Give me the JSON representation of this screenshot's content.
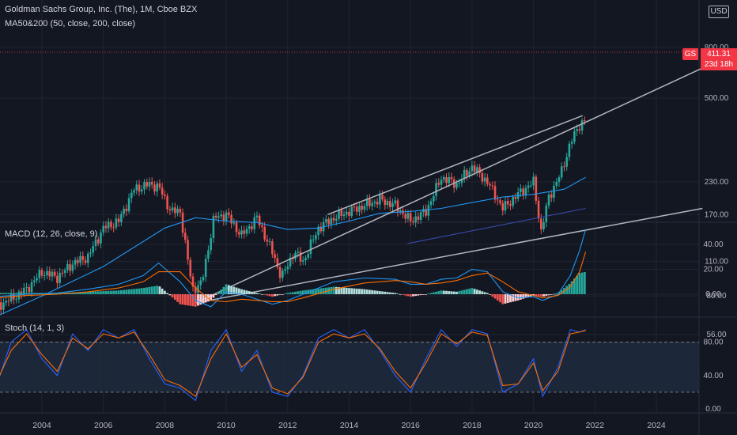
{
  "header": {
    "title": "Goldman Sachs Group, Inc. (The), 1M, Cboe BZX",
    "ma_legend": "MA50&200 (50, close, 200, close)",
    "currency": "USD"
  },
  "price_tag": {
    "symbol": "GS",
    "value": "411.31",
    "countdown": "23d 18h"
  },
  "indicators": {
    "macd_legend": "MACD (12, 26, close, 9)",
    "stoch_legend": "Stoch (14, 1, 3)"
  },
  "colors": {
    "background": "#131722",
    "up": "#26a69a",
    "down": "#ef5350",
    "ma_short": "#2196f3",
    "ma_long": "#3949ab",
    "trendline": "#b2b5be",
    "macd_line": "#2196f3",
    "signal_line": "#ff6d00",
    "stoch_k": "#2962ff",
    "stoch_d": "#ff6d00",
    "price_tag": "#f23645"
  },
  "chart_data": [
    {
      "type": "candlestick",
      "title": "Goldman Sachs Group, Inc. (The), 1M, Cboe BZX",
      "scale": "log",
      "yticks": [
        56,
        80,
        110,
        170,
        230,
        500,
        800
      ],
      "ytick_labels": [
        "56.00",
        "80.00",
        "110.00",
        "170.00",
        "230.00",
        "500.00",
        "800.00"
      ],
      "xticks": [
        2004,
        2006,
        2008,
        2010,
        2012,
        2014,
        2016,
        2018,
        2020,
        2022,
        2024
      ],
      "last_price": 411.31,
      "close_series": {
        "x": [
          2002.5,
          2003.0,
          2003.5,
          2004.0,
          2004.5,
          2005.0,
          2005.5,
          2006.0,
          2006.5,
          2007.0,
          2007.5,
          2007.8,
          2008.2,
          2008.5,
          2008.9,
          2009.2,
          2009.6,
          2010.0,
          2010.5,
          2011.0,
          2011.5,
          2011.8,
          2012.2,
          2012.5,
          2013.0,
          2013.5,
          2014.0,
          2014.5,
          2015.0,
          2015.5,
          2016.0,
          2016.5,
          2017.0,
          2017.5,
          2018.0,
          2018.5,
          2019.0,
          2019.5,
          2020.0,
          2020.25,
          2020.5,
          2020.9,
          2021.2,
          2021.5,
          2021.7
        ],
        "close": [
          72,
          78,
          85,
          100,
          95,
          108,
          115,
          150,
          160,
          215,
          225,
          220,
          175,
          175,
          85,
          90,
          165,
          170,
          140,
          165,
          120,
          95,
          120,
          110,
          150,
          165,
          175,
          185,
          195,
          185,
          160,
          175,
          240,
          225,
          265,
          230,
          180,
          205,
          230,
          145,
          200,
          250,
          330,
          390,
          411.31
        ]
      },
      "ma50": {
        "x": [
          2002.5,
          2004,
          2006,
          2008,
          2009,
          2010,
          2011,
          2012,
          2013,
          2014,
          2015,
          2016,
          2017,
          2018,
          2019,
          2020,
          2021,
          2021.7
        ],
        "y": [
          66,
          80,
          105,
          150,
          165,
          160,
          158,
          148,
          150,
          160,
          172,
          175,
          180,
          190,
          200,
          205,
          215,
          240
        ]
      },
      "ma200": {
        "x": [
          2015.9,
          2021.7
        ],
        "y": [
          130,
          180
        ]
      },
      "trendlines": [
        {
          "x": [
            2009.0,
            2025.5
          ],
          "y": [
            75,
            660
          ]
        },
        {
          "x": [
            2009.0,
            2025.5
          ],
          "y": [
            75,
            180
          ]
        },
        {
          "x": [
            2013.3,
            2021.6
          ],
          "y": [
            170,
            425
          ]
        }
      ]
    },
    {
      "type": "line",
      "title": "MACD (12, 26, close, 9)",
      "yticks": [
        0,
        20,
        40
      ],
      "ytick_labels": [
        "0.00",
        "20.00",
        "40.00"
      ],
      "x": [
        2002.5,
        2003.5,
        2004.5,
        2005.5,
        2006.5,
        2007.3,
        2007.8,
        2008.5,
        2009.0,
        2009.5,
        2010.0,
        2010.5,
        2011.5,
        2012.0,
        2012.5,
        2013.5,
        2014.5,
        2015.5,
        2016.0,
        2016.5,
        2017.0,
        2017.5,
        2018.0,
        2018.5,
        2019.0,
        2019.5,
        2020.0,
        2020.3,
        2020.8,
        2021.2,
        2021.5,
        2021.7
      ],
      "series": [
        {
          "values": [
            -2,
            0,
            1,
            4,
            8,
            15,
            25,
            10,
            -5,
            -10,
            2,
            0,
            -8,
            -5,
            0,
            10,
            13,
            12,
            8,
            8,
            12,
            13,
            20,
            18,
            2,
            -3,
            -2,
            -5,
            0,
            15,
            35,
            52
          ]
        },
        {
          "values": [
            -3,
            -1,
            0,
            2,
            5,
            10,
            18,
            18,
            5,
            -5,
            -6,
            -4,
            -6,
            -6,
            -3,
            4,
            9,
            11,
            10,
            8,
            9,
            11,
            15,
            17,
            10,
            2,
            -1,
            -3,
            -1,
            6,
            18,
            34
          ]
        }
      ]
    },
    {
      "type": "line",
      "title": "Stoch (14, 1, 3)",
      "yticks": [
        0,
        40,
        80
      ],
      "ytick_labels": [
        "0.00",
        "40.00",
        "80.00"
      ],
      "bands": [
        20,
        80
      ],
      "x": [
        2002.5,
        2003.0,
        2003.5,
        2004.0,
        2004.5,
        2005.0,
        2005.5,
        2006.0,
        2006.5,
        2007.0,
        2007.5,
        2008.0,
        2008.5,
        2009.0,
        2009.5,
        2010.0,
        2010.5,
        2011.0,
        2011.5,
        2012.0,
        2012.5,
        2013.0,
        2013.5,
        2014.0,
        2014.5,
        2015.0,
        2015.5,
        2016.0,
        2016.5,
        2017.0,
        2017.5,
        2018.0,
        2018.5,
        2019.0,
        2019.5,
        2020.0,
        2020.3,
        2020.8,
        2021.2,
        2021.5,
        2021.7
      ],
      "series": [
        {
          "values": [
            25,
            80,
            95,
            60,
            40,
            90,
            70,
            95,
            85,
            95,
            60,
            30,
            25,
            10,
            70,
            95,
            45,
            70,
            20,
            15,
            40,
            85,
            95,
            85,
            95,
            70,
            40,
            20,
            60,
            95,
            75,
            95,
            90,
            20,
            30,
            60,
            15,
            50,
            95,
            92,
            95
          ]
        },
        {
          "values": [
            30,
            70,
            90,
            65,
            45,
            85,
            72,
            90,
            85,
            92,
            65,
            35,
            28,
            15,
            60,
            90,
            50,
            65,
            25,
            18,
            38,
            80,
            90,
            85,
            90,
            72,
            45,
            25,
            55,
            90,
            78,
            92,
            88,
            28,
            30,
            55,
            22,
            45,
            90,
            92,
            94
          ]
        }
      ]
    }
  ]
}
